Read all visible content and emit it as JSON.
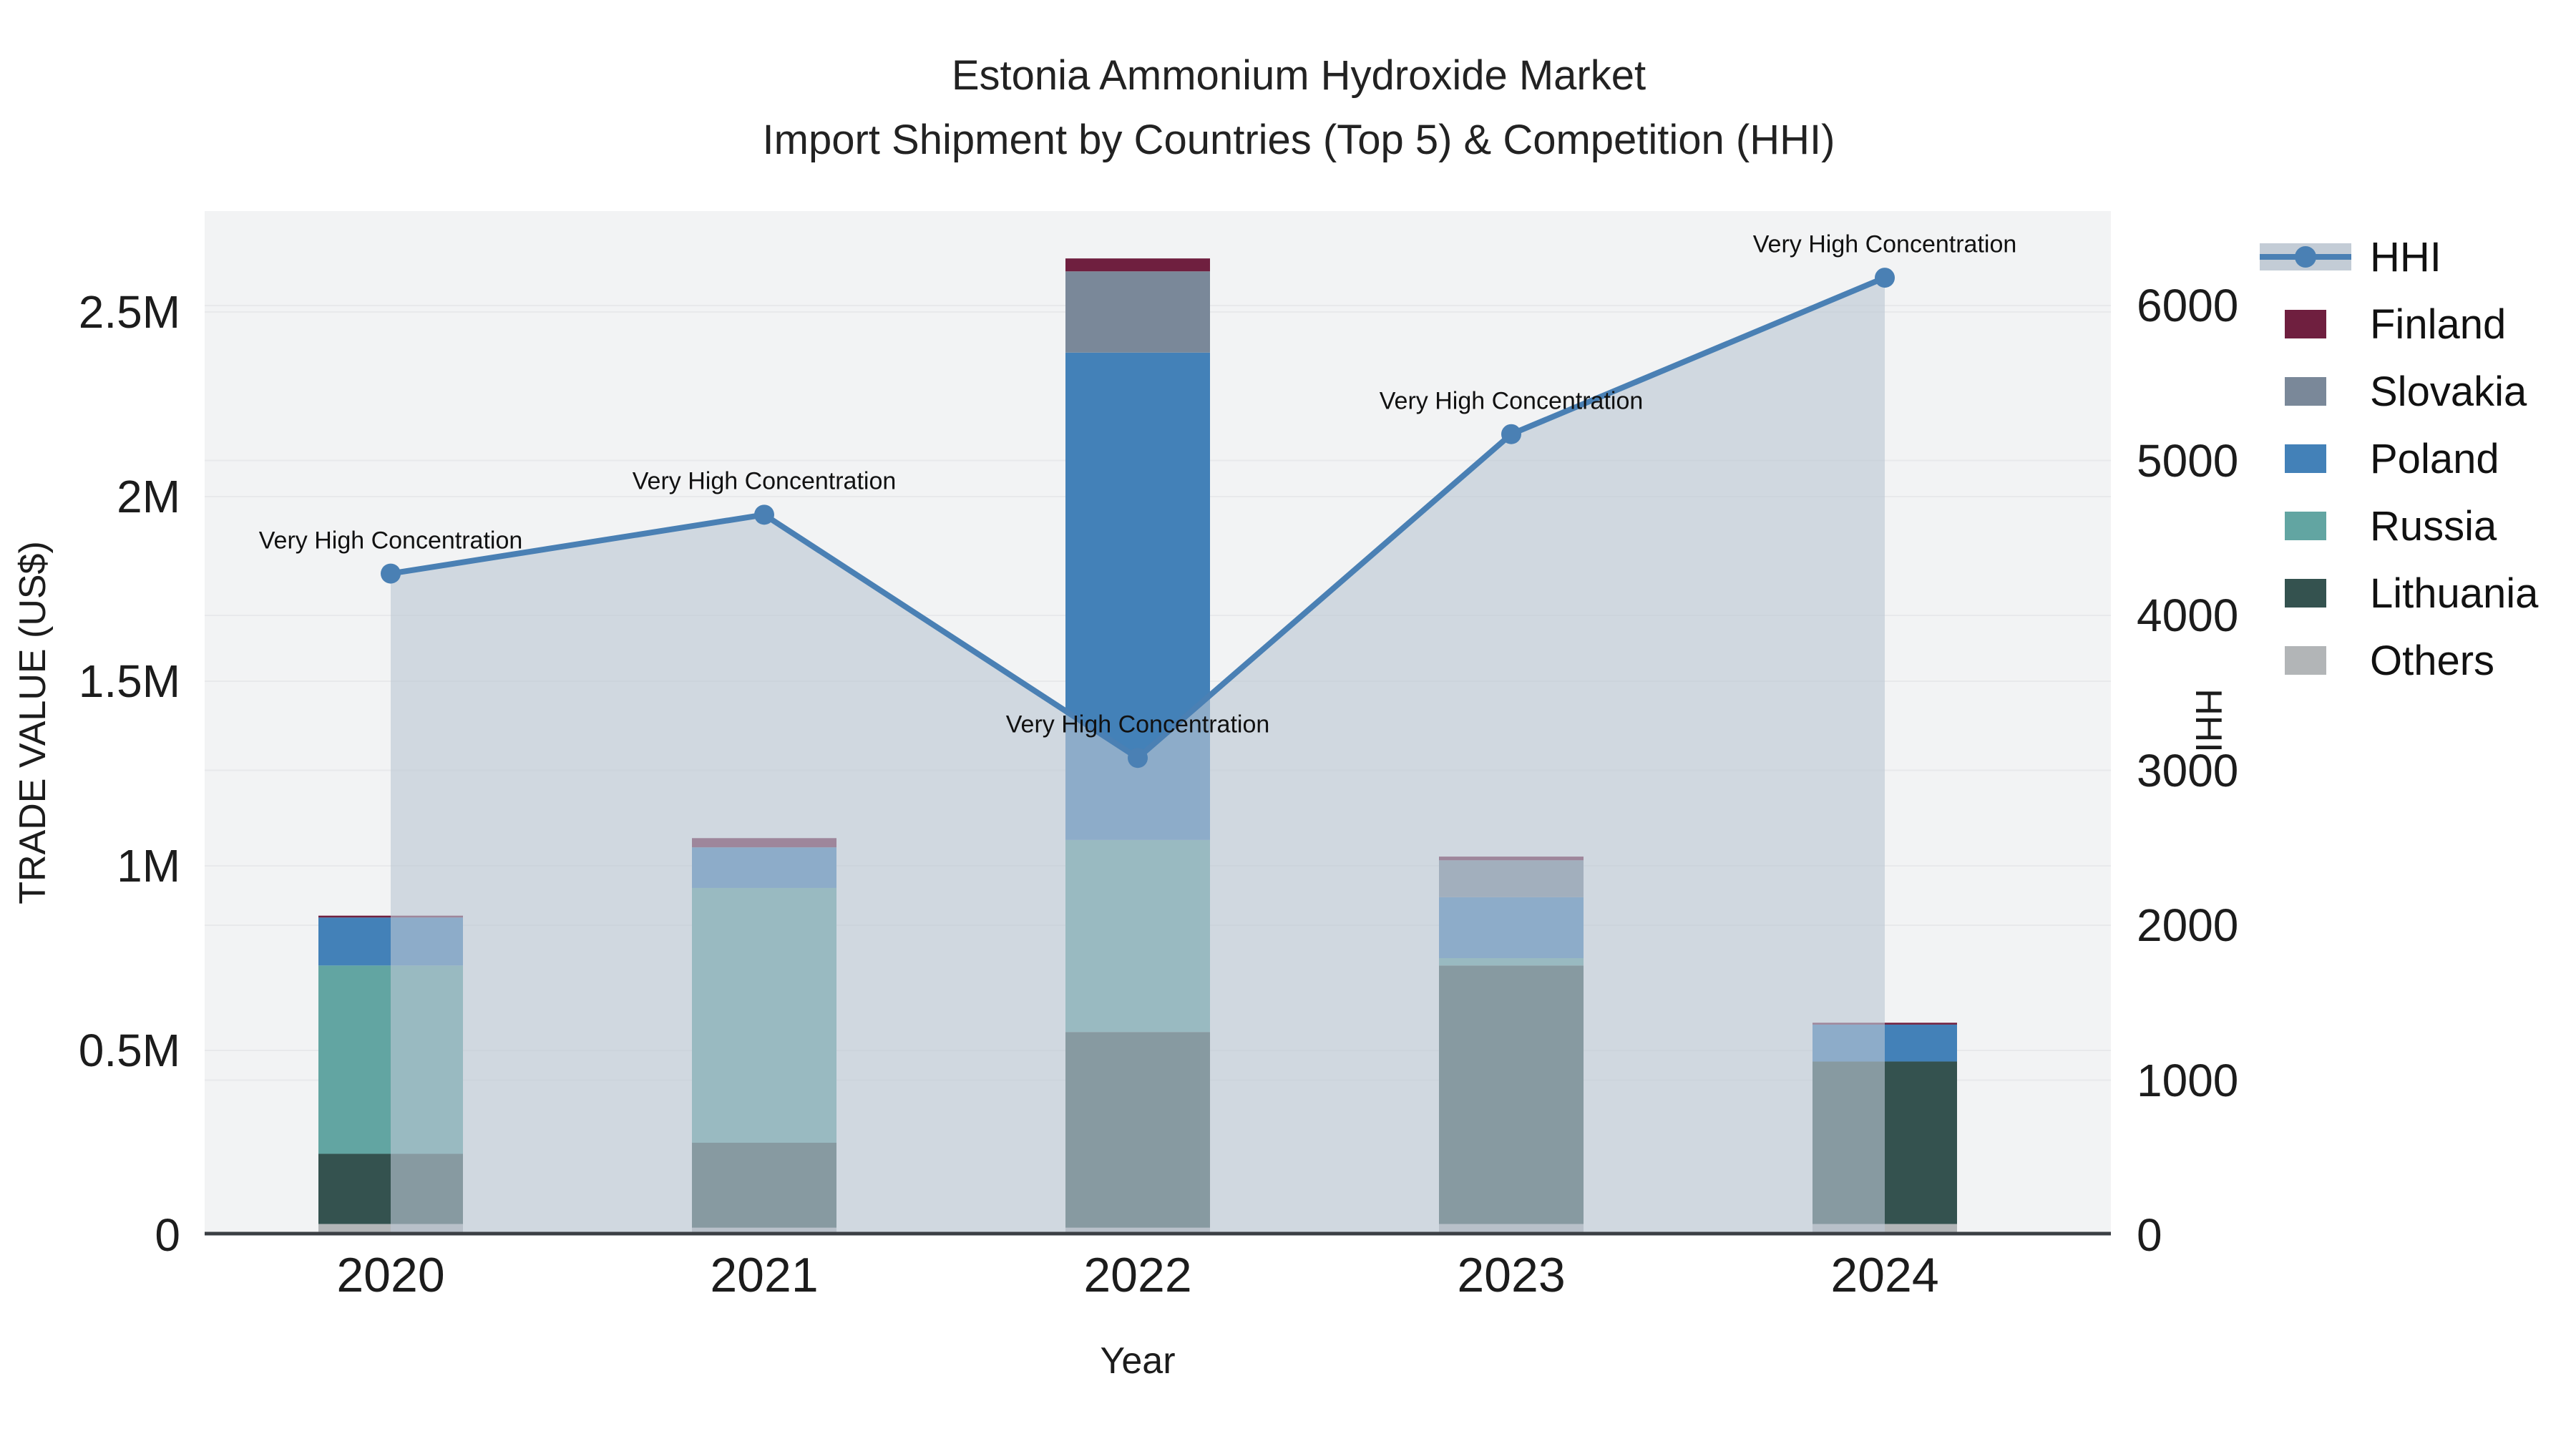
{
  "title": {
    "line1": "Estonia Ammonium Hydroxide Market",
    "line2": "Import Shipment by Countries (Top 5) & Competition (HHI)"
  },
  "axes": {
    "x_title": "Year",
    "y_left_title": "TRADE VALUE (US$)",
    "y_right_title": "HHI",
    "y_left_tick_labels": [
      "0",
      "0.5M",
      "1M",
      "1.5M",
      "2M",
      "2.5M"
    ],
    "y_left_tick_values": [
      0,
      500000,
      1000000,
      1500000,
      2000000,
      2500000
    ],
    "y_right_tick_labels": [
      "0",
      "1000",
      "2000",
      "3000",
      "4000",
      "5000",
      "6000"
    ],
    "y_right_tick_values": [
      0,
      1000,
      2000,
      3000,
      4000,
      5000,
      6000
    ]
  },
  "legend": {
    "items": [
      {
        "id": "hhi",
        "label": "HHI",
        "type": "line-area"
      },
      {
        "id": "finland",
        "label": "Finland",
        "type": "box"
      },
      {
        "id": "slovakia",
        "label": "Slovakia",
        "type": "box"
      },
      {
        "id": "poland",
        "label": "Poland",
        "type": "box"
      },
      {
        "id": "russia",
        "label": "Russia",
        "type": "box"
      },
      {
        "id": "lithuania",
        "label": "Lithuania",
        "type": "box"
      },
      {
        "id": "others",
        "label": "Others",
        "type": "box"
      }
    ]
  },
  "colors": {
    "finland": "#6f1f3f",
    "slovakia": "#7a8899",
    "poland": "#4381b8",
    "russia": "#62a5a2",
    "lithuania": "#34524f",
    "others": "#b2b5b7",
    "hhi_line": "#4a80b4",
    "hhi_area_fill": "#bcc6d4",
    "hhi_area_opacity": 0.62,
    "plot_background": "#f2f3f4",
    "gridline": "#e8e9eb",
    "axis_line": "#3b3f44"
  },
  "chart_data": {
    "type": "bar",
    "subtype": "stacked-bars-with-hhi-line-and-area",
    "title": "Estonia Ammonium Hydroxide Market — Import Shipment by Countries (Top 5) & Competition (HHI)",
    "xlabel": "Year",
    "ylabel_left": "TRADE VALUE (US$)",
    "ylabel_right": "HHI",
    "ylim_left_usd": [
      0,
      2770000
    ],
    "ylim_right_hhi": [
      0,
      6610
    ],
    "grid": "on",
    "legend_position": "right",
    "categories": [
      2020,
      2021,
      2022,
      2023,
      2024
    ],
    "series": [
      {
        "name": "Others",
        "stack_order": 1,
        "values_usd": [
          30000,
          20000,
          20000,
          30000,
          30000
        ]
      },
      {
        "name": "Lithuania",
        "stack_order": 2,
        "values_usd": [
          190000,
          230000,
          530000,
          700000,
          440000
        ]
      },
      {
        "name": "Russia",
        "stack_order": 3,
        "values_usd": [
          510000,
          690000,
          520000,
          20000,
          0
        ]
      },
      {
        "name": "Poland",
        "stack_order": 4,
        "values_usd": [
          130000,
          110000,
          1320000,
          165000,
          100000
        ]
      },
      {
        "name": "Slovakia",
        "stack_order": 5,
        "values_usd": [
          0,
          0,
          220000,
          100000,
          0
        ]
      },
      {
        "name": "Finland",
        "stack_order": 6,
        "values_usd": [
          5000,
          25000,
          35000,
          10000,
          5000
        ]
      }
    ],
    "bar_totals_usd": [
      865000,
      1075000,
      2645000,
      1025000,
      575000
    ],
    "line_series": {
      "name": "HHI",
      "axis": "right",
      "values": [
        4270,
        4650,
        3080,
        5170,
        6180
      ],
      "area_fill": true
    },
    "annotations": [
      {
        "year": 2020,
        "text": "Very High Concentration"
      },
      {
        "year": 2021,
        "text": "Very High Concentration"
      },
      {
        "year": 2022,
        "text": "Very High Concentration"
      },
      {
        "year": 2023,
        "text": "Very High Concentration"
      },
      {
        "year": 2024,
        "text": "Very High Concentration"
      }
    ]
  }
}
